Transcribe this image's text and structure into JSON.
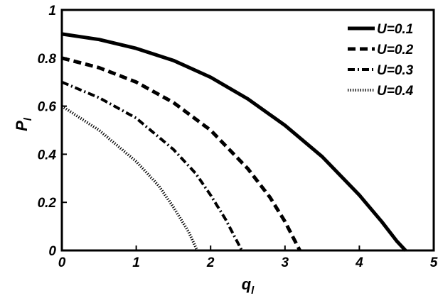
{
  "chart_data": {
    "type": "line",
    "xlabel": "q",
    "xlabel_sub": "l",
    "ylabel": "P",
    "ylabel_sub": "l",
    "xlim": [
      0,
      5
    ],
    "ylim": [
      0,
      1
    ],
    "xticks": [
      0,
      1,
      2,
      3,
      4,
      5
    ],
    "yticks": [
      0,
      0.2,
      0.4,
      0.6,
      0.8,
      1
    ],
    "xtick_labels": [
      "0",
      "1",
      "2",
      "3",
      "4",
      "5"
    ],
    "ytick_labels": [
      "0",
      "0.2",
      "0.4",
      "0.6",
      "0.8",
      "1"
    ],
    "grid": false,
    "legend_position": "top-right",
    "series": [
      {
        "name": "U=0.1",
        "style": "solid",
        "x": [
          0,
          0.5,
          1,
          1.5,
          2,
          2.5,
          3,
          3.5,
          4,
          4.3,
          4.5,
          4.62
        ],
        "y": [
          0.9,
          0.877,
          0.84,
          0.79,
          0.72,
          0.63,
          0.52,
          0.39,
          0.23,
          0.12,
          0.04,
          0
        ]
      },
      {
        "name": "U=0.2",
        "style": "dashed",
        "x": [
          0,
          0.5,
          1,
          1.5,
          2,
          2.5,
          2.8,
          3,
          3.2
        ],
        "y": [
          0.8,
          0.76,
          0.7,
          0.615,
          0.5,
          0.34,
          0.22,
          0.12,
          0
        ]
      },
      {
        "name": "U=0.3",
        "style": "dashdot",
        "x": [
          0,
          0.5,
          1,
          1.5,
          1.8,
          2,
          2.2,
          2.42
        ],
        "y": [
          0.7,
          0.635,
          0.55,
          0.42,
          0.32,
          0.23,
          0.13,
          0
        ]
      },
      {
        "name": "U=0.4",
        "style": "dotted",
        "x": [
          0,
          0.5,
          1,
          1.3,
          1.5,
          1.7,
          1.82
        ],
        "y": [
          0.6,
          0.5,
          0.37,
          0.27,
          0.18,
          0.08,
          0
        ]
      }
    ]
  }
}
